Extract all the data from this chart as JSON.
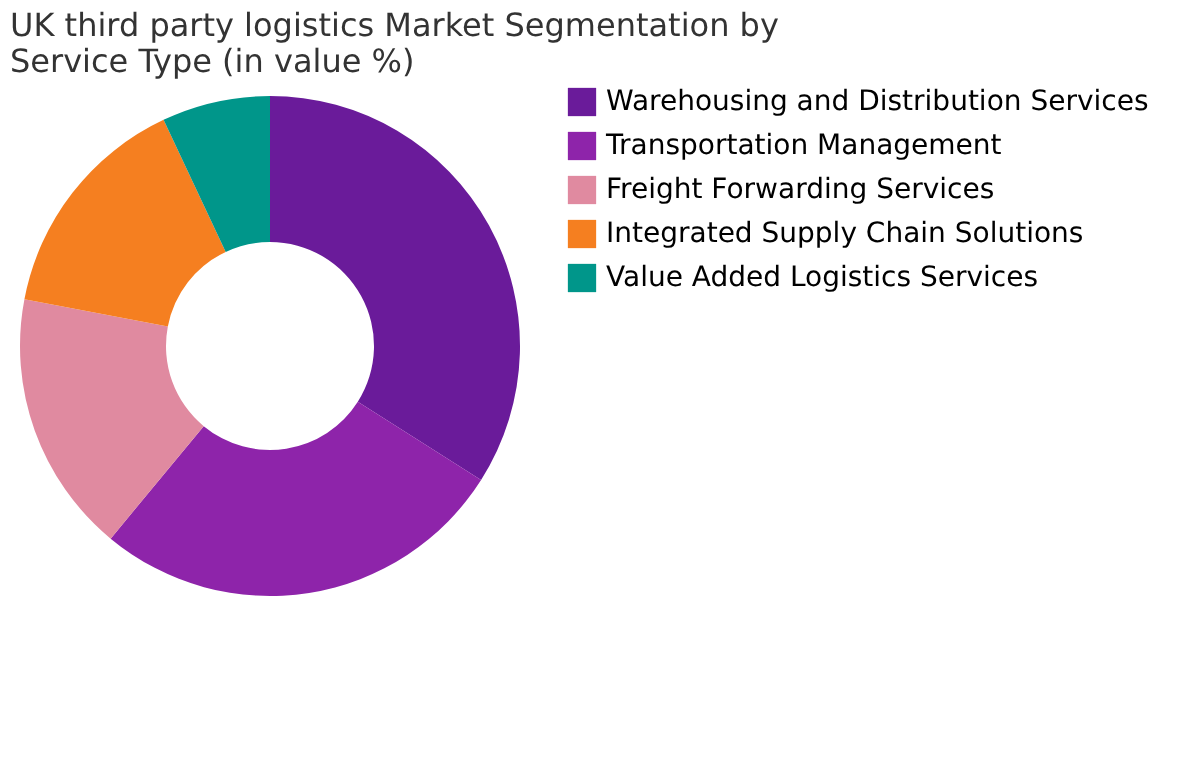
{
  "chart_data": {
    "type": "donut",
    "title": "UK third party logistics Market Segmentation by Service Type  (in value %)",
    "categories": [
      "Warehousing and Distribution Services",
      "Transportation Management",
      "Freight Forwarding Services",
      "Integrated Supply Chain Solutions",
      "Value Added Logistics Services"
    ],
    "values": [
      34,
      27,
      17,
      15,
      7
    ],
    "colors": [
      "#6a1b9a",
      "#8e24aa",
      "#e08aa0",
      "#f57f20",
      "#00968a"
    ],
    "legend": "right"
  }
}
